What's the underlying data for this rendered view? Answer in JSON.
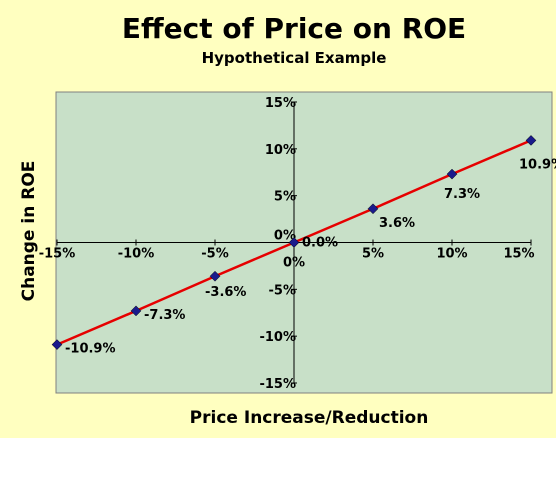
{
  "chart_data": {
    "type": "line",
    "title": "Effect of Price on ROE",
    "subtitle": "Hypothetical Example",
    "xlabel": "Price Increase/Reduction",
    "ylabel": "Change in ROE",
    "xlim": [
      -15,
      15
    ],
    "ylim": [
      -15,
      15
    ],
    "x_ticks": [
      "-15%",
      "-10%",
      "-5%",
      "0%",
      "5%",
      "10%",
      "15%"
    ],
    "y_ticks": [
      "15%",
      "10%",
      "5%",
      "0%",
      "-5%",
      "-10%",
      "-15%"
    ],
    "grid": false,
    "series": [
      {
        "x": [
          -15,
          -10,
          -5,
          0,
          5,
          10,
          15
        ],
        "y": [
          -10.9,
          -7.3,
          -3.6,
          0.0,
          3.6,
          7.3,
          10.9
        ],
        "labels": [
          "-10.9%",
          "-7.3%",
          "-3.6%",
          "0.0%",
          "3.6%",
          "7.3%",
          "10.9%"
        ]
      }
    ],
    "colors": {
      "figure_background": "#ffffc0",
      "plot_background": "#c8e0c8",
      "line": "#e60000",
      "marker": "#1a1a8c"
    }
  }
}
